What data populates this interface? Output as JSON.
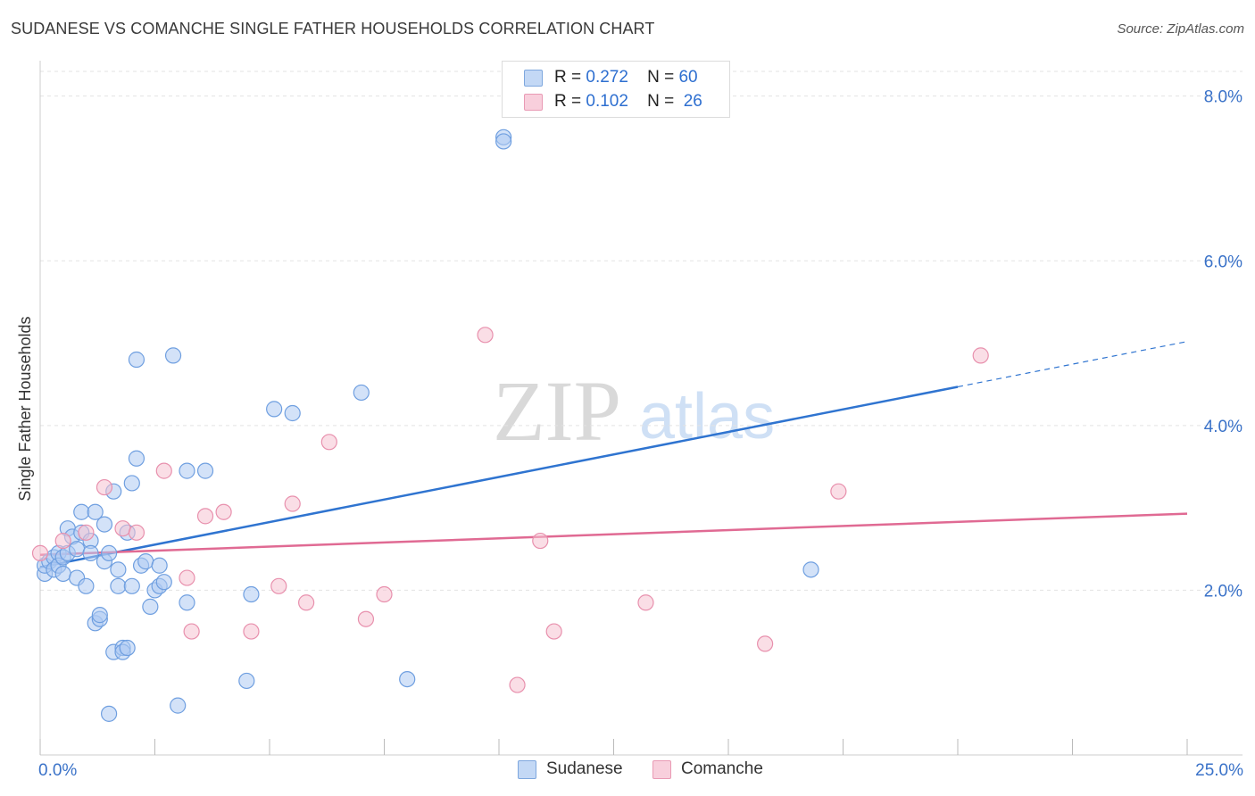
{
  "title": "SUDANESE VS COMANCHE SINGLE FATHER HOUSEHOLDS CORRELATION CHART",
  "source": "Source: ZipAtlas.com",
  "watermark": {
    "zip": "ZIP",
    "atlas": "atlas"
  },
  "colors": {
    "sudanese_fill": "#aecbf2",
    "sudanese_stroke": "#6f9fe0",
    "sudanese_line": "#2f74d0",
    "comanche_fill": "#f6c3d2",
    "comanche_stroke": "#e890ad",
    "comanche_line": "#e06a93",
    "axis_label": "#3a72c8",
    "grid": "#e3e3e3"
  },
  "legend": {
    "rows": [
      {
        "r_label": "R =",
        "r_value": "0.272",
        "n_label": "N =",
        "n_value": "60"
      },
      {
        "r_label": "R =",
        "r_value": "0.102",
        "n_label": "N =",
        "n_value": "26"
      }
    ]
  },
  "bottom_legend": {
    "sudanese": "Sudanese",
    "comanche": "Comanche"
  },
  "chart_data": {
    "type": "scatter",
    "xlabel": "",
    "ylabel": "Single Father Households",
    "xlim": [
      0,
      25
    ],
    "ylim": [
      0,
      8.3
    ],
    "x_tick_labels": [
      "0.0%",
      "25.0%"
    ],
    "y_ticks": [
      2,
      4,
      6,
      8
    ],
    "y_tick_labels": [
      "2.0%",
      "4.0%",
      "6.0%",
      "8.0%"
    ],
    "grid": true,
    "series": [
      {
        "name": "Sudanese",
        "r": 0.272,
        "n": 60,
        "trend": {
          "x0": 0,
          "y0": 2.28,
          "x1": 20,
          "y1": 4.47,
          "dash_to_x": 25,
          "dash_to_y": 5.02
        },
        "points": [
          [
            0.1,
            2.2
          ],
          [
            0.1,
            2.3
          ],
          [
            0.2,
            2.35
          ],
          [
            0.3,
            2.4
          ],
          [
            0.3,
            2.25
          ],
          [
            0.4,
            2.45
          ],
          [
            0.4,
            2.3
          ],
          [
            0.5,
            2.2
          ],
          [
            0.5,
            2.4
          ],
          [
            0.6,
            2.75
          ],
          [
            0.6,
            2.45
          ],
          [
            0.7,
            2.65
          ],
          [
            0.8,
            2.15
          ],
          [
            0.8,
            2.5
          ],
          [
            0.9,
            2.7
          ],
          [
            0.9,
            2.95
          ],
          [
            1.0,
            2.05
          ],
          [
            1.1,
            2.6
          ],
          [
            1.1,
            2.45
          ],
          [
            1.2,
            2.95
          ],
          [
            1.2,
            1.6
          ],
          [
            1.3,
            1.65
          ],
          [
            1.3,
            1.7
          ],
          [
            1.4,
            2.8
          ],
          [
            1.4,
            2.35
          ],
          [
            1.5,
            2.45
          ],
          [
            1.5,
            0.5
          ],
          [
            1.6,
            3.2
          ],
          [
            1.6,
            1.25
          ],
          [
            1.7,
            2.05
          ],
          [
            1.7,
            2.25
          ],
          [
            1.8,
            1.3
          ],
          [
            1.8,
            1.25
          ],
          [
            1.9,
            1.3
          ],
          [
            1.9,
            2.7
          ],
          [
            2.0,
            2.05
          ],
          [
            2.0,
            3.3
          ],
          [
            2.1,
            4.8
          ],
          [
            2.1,
            3.6
          ],
          [
            2.2,
            2.3
          ],
          [
            2.3,
            2.35
          ],
          [
            2.4,
            1.8
          ],
          [
            2.5,
            2.0
          ],
          [
            2.6,
            2.05
          ],
          [
            2.7,
            2.1
          ],
          [
            2.9,
            4.85
          ],
          [
            3.0,
            0.6
          ],
          [
            3.2,
            3.45
          ],
          [
            3.2,
            1.85
          ],
          [
            3.6,
            3.45
          ],
          [
            4.5,
            0.9
          ],
          [
            4.6,
            1.95
          ],
          [
            5.1,
            4.2
          ],
          [
            5.5,
            4.15
          ],
          [
            7.0,
            4.4
          ],
          [
            8.0,
            0.92
          ],
          [
            10.1,
            7.5
          ],
          [
            10.1,
            7.45
          ],
          [
            16.8,
            2.25
          ],
          [
            2.6,
            2.3
          ]
        ]
      },
      {
        "name": "Comanche",
        "r": 0.102,
        "n": 26,
        "trend": {
          "x0": 0,
          "y0": 2.43,
          "x1": 25,
          "y1": 2.93
        },
        "points": [
          [
            0.0,
            2.45
          ],
          [
            0.5,
            2.6
          ],
          [
            1.0,
            2.7
          ],
          [
            1.4,
            3.25
          ],
          [
            1.8,
            2.75
          ],
          [
            2.1,
            2.7
          ],
          [
            2.7,
            3.45
          ],
          [
            3.2,
            2.15
          ],
          [
            3.3,
            1.5
          ],
          [
            3.6,
            2.9
          ],
          [
            4.0,
            2.95
          ],
          [
            4.6,
            1.5
          ],
          [
            5.2,
            2.05
          ],
          [
            5.5,
            3.05
          ],
          [
            5.8,
            1.85
          ],
          [
            6.3,
            3.8
          ],
          [
            7.1,
            1.65
          ],
          [
            7.5,
            1.95
          ],
          [
            9.7,
            5.1
          ],
          [
            10.4,
            0.85
          ],
          [
            10.9,
            2.6
          ],
          [
            11.2,
            1.5
          ],
          [
            13.2,
            1.85
          ],
          [
            15.8,
            1.35
          ],
          [
            17.4,
            3.2
          ],
          [
            20.5,
            4.85
          ]
        ]
      }
    ]
  }
}
